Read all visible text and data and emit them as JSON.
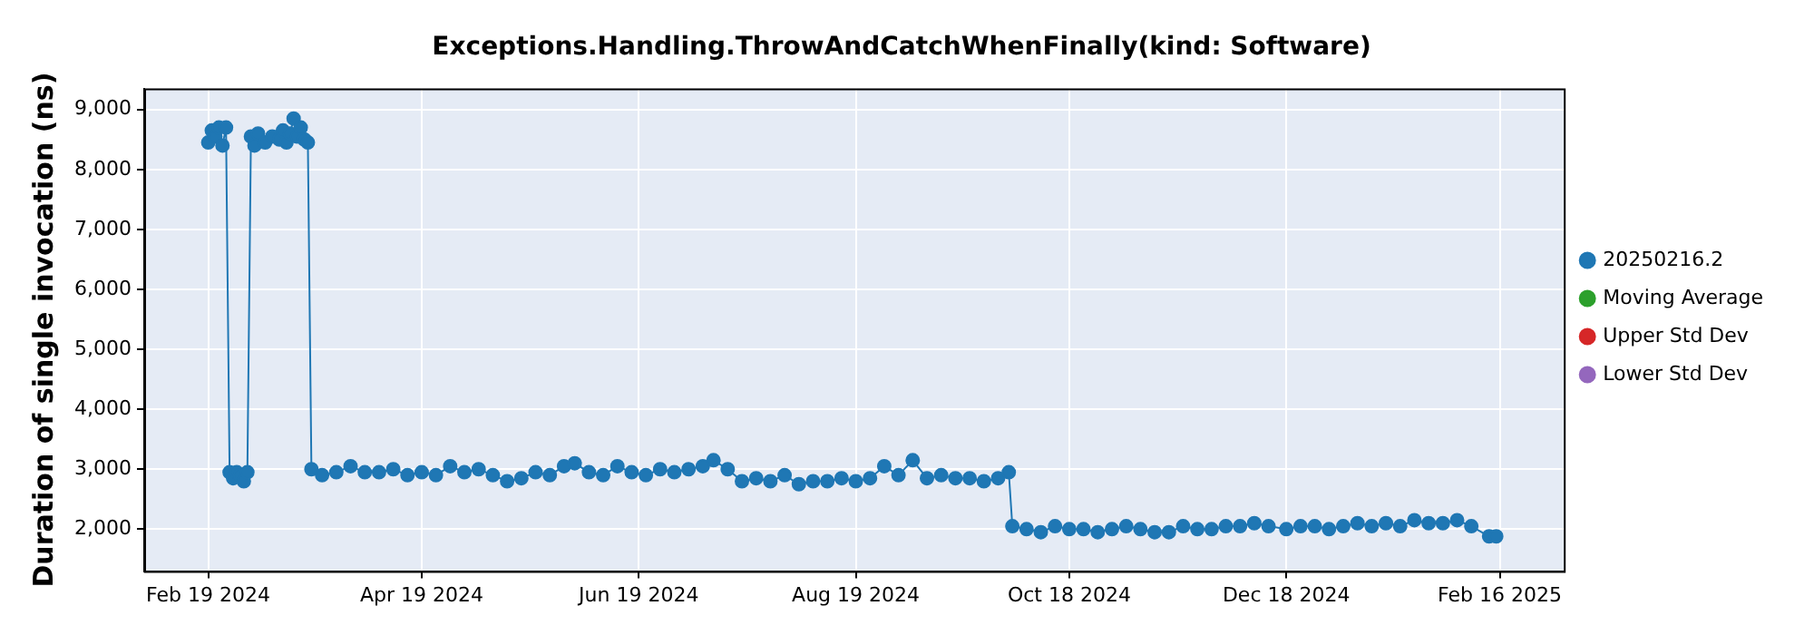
{
  "chart_data": {
    "type": "line",
    "title": "Exceptions.Handling.ThrowAndCatchWhenFinally(kind: Software)",
    "ylabel": "Duration of single invocation (ns)",
    "x": [
      "2024-02-19",
      "2024-02-20",
      "2024-02-21",
      "2024-02-22",
      "2024-02-23",
      "2024-02-24",
      "2024-02-25",
      "2024-02-26",
      "2024-02-27",
      "2024-02-28",
      "2024-02-29",
      "2024-03-01",
      "2024-03-02",
      "2024-03-03",
      "2024-03-04",
      "2024-03-06",
      "2024-03-08",
      "2024-03-10",
      "2024-03-11",
      "2024-03-12",
      "2024-03-13",
      "2024-03-14",
      "2024-03-15",
      "2024-03-16",
      "2024-03-17",
      "2024-03-18",
      "2024-03-19",
      "2024-03-22",
      "2024-03-26",
      "2024-03-30",
      "2024-04-03",
      "2024-04-07",
      "2024-04-11",
      "2024-04-15",
      "2024-04-19",
      "2024-04-23",
      "2024-04-27",
      "2024-05-01",
      "2024-05-05",
      "2024-05-09",
      "2024-05-13",
      "2024-05-17",
      "2024-05-21",
      "2024-05-25",
      "2024-05-29",
      "2024-06-01",
      "2024-06-05",
      "2024-06-09",
      "2024-06-13",
      "2024-06-17",
      "2024-06-21",
      "2024-06-25",
      "2024-06-29",
      "2024-07-03",
      "2024-07-07",
      "2024-07-10",
      "2024-07-14",
      "2024-07-18",
      "2024-07-22",
      "2024-07-26",
      "2024-07-30",
      "2024-08-03",
      "2024-08-07",
      "2024-08-11",
      "2024-08-15",
      "2024-08-19",
      "2024-08-23",
      "2024-08-27",
      "2024-08-31",
      "2024-09-04",
      "2024-09-08",
      "2024-09-12",
      "2024-09-16",
      "2024-09-20",
      "2024-09-24",
      "2024-09-28",
      "2024-10-01",
      "2024-10-02",
      "2024-10-06",
      "2024-10-10",
      "2024-10-14",
      "2024-10-18",
      "2024-10-22",
      "2024-10-26",
      "2024-10-30",
      "2024-11-03",
      "2024-11-07",
      "2024-11-11",
      "2024-11-15",
      "2024-11-19",
      "2024-11-23",
      "2024-11-27",
      "2024-12-01",
      "2024-12-05",
      "2024-12-09",
      "2024-12-13",
      "2024-12-18",
      "2024-12-22",
      "2024-12-26",
      "2024-12-30",
      "2025-01-03",
      "2025-01-07",
      "2025-01-11",
      "2025-01-15",
      "2025-01-19",
      "2025-01-23",
      "2025-01-27",
      "2025-01-31",
      "2025-02-04",
      "2025-02-08",
      "2025-02-13",
      "2025-02-15"
    ],
    "series": [
      {
        "name": "20250216.2",
        "color": "#1f77b4",
        "values": [
          8450,
          8650,
          8550,
          8700,
          8400,
          8700,
          2950,
          2850,
          2950,
          2900,
          2800,
          2950,
          8550,
          8400,
          8600,
          8450,
          8550,
          8500,
          8650,
          8450,
          8600,
          8850,
          8550,
          8700,
          8500,
          8450,
          3000,
          2900,
          2950,
          3050,
          2950,
          2950,
          3000,
          2900,
          2950,
          2900,
          3050,
          2950,
          3000,
          2900,
          2800,
          2850,
          2950,
          2900,
          3050,
          3100,
          2950,
          2900,
          3050,
          2950,
          2900,
          3000,
          2950,
          3000,
          3050,
          3150,
          3000,
          2800,
          2850,
          2800,
          2900,
          2750,
          2800,
          2800,
          2850,
          2800,
          2850,
          3050,
          2900,
          3150,
          2850,
          2900,
          2850,
          2850,
          2800,
          2850,
          2950,
          2050,
          2000,
          1950,
          2050,
          2000,
          2000,
          1950,
          2000,
          2050,
          2000,
          1950,
          1950,
          2050,
          2000,
          2000,
          2050,
          2050,
          2100,
          2050,
          2000,
          2050,
          2050,
          2000,
          2050,
          2100,
          2050,
          2100,
          2050,
          2150,
          2100,
          2100,
          2150,
          2050,
          1880,
          1880
        ]
      },
      {
        "name": "Moving Average",
        "color": "#2ca02c",
        "values": [
          null,
          null,
          null,
          null,
          null,
          null,
          null,
          null,
          null,
          null,
          null,
          null,
          null,
          null,
          null,
          null,
          null,
          null,
          null,
          null,
          null,
          null,
          null,
          null,
          null,
          null,
          null,
          null,
          null,
          null,
          null,
          null,
          null,
          null,
          null,
          null,
          null,
          null,
          null,
          null,
          null,
          null,
          null,
          null,
          null,
          null,
          null,
          null,
          null,
          null,
          null,
          null,
          null,
          null,
          null,
          null,
          null,
          null,
          null,
          null,
          null,
          null,
          null,
          null,
          null,
          null,
          null,
          null,
          null,
          null,
          null,
          null,
          null,
          null,
          null,
          null,
          null,
          null,
          null,
          null,
          null,
          null,
          null,
          null,
          null,
          null,
          null,
          null,
          null,
          null,
          null,
          null,
          null,
          null,
          null,
          null,
          null,
          null,
          null,
          null,
          null,
          null,
          null,
          null,
          null,
          null,
          null,
          null,
          null,
          null,
          null,
          null
        ]
      },
      {
        "name": "Upper Std Dev",
        "color": "#d62728",
        "values": [
          null,
          null,
          null,
          null,
          null,
          null,
          null,
          null,
          null,
          null,
          null,
          null,
          null,
          null,
          null,
          null,
          null,
          null,
          null,
          null,
          null,
          null,
          null,
          null,
          null,
          null,
          null,
          null,
          null,
          null,
          null,
          null,
          null,
          null,
          null,
          null,
          null,
          null,
          null,
          null,
          null,
          null,
          null,
          null,
          null,
          null,
          null,
          null,
          null,
          null,
          null,
          null,
          null,
          null,
          null,
          null,
          null,
          null,
          null,
          null,
          null,
          null,
          null,
          null,
          null,
          null,
          null,
          null,
          null,
          null,
          null,
          null,
          null,
          null,
          null,
          null,
          null,
          null,
          null,
          null,
          null,
          null,
          null,
          null,
          null,
          null,
          null,
          null,
          null,
          null,
          null,
          null,
          null,
          null,
          null,
          null,
          null,
          null,
          null,
          null,
          null,
          null,
          null,
          null,
          null,
          null,
          null,
          null,
          null,
          null,
          null,
          null
        ]
      },
      {
        "name": "Lower Std Dev",
        "color": "#9467bd",
        "values": [
          null,
          null,
          null,
          null,
          null,
          null,
          null,
          null,
          null,
          null,
          null,
          null,
          null,
          null,
          null,
          null,
          null,
          null,
          null,
          null,
          null,
          null,
          null,
          null,
          null,
          null,
          null,
          null,
          null,
          null,
          null,
          null,
          null,
          null,
          null,
          null,
          null,
          null,
          null,
          null,
          null,
          null,
          null,
          null,
          null,
          null,
          null,
          null,
          null,
          null,
          null,
          null,
          null,
          null,
          null,
          null,
          null,
          null,
          null,
          null,
          null,
          null,
          null,
          null,
          null,
          null,
          null,
          null,
          null,
          null,
          null,
          null,
          null,
          null,
          null,
          null,
          null,
          null,
          null,
          null,
          null,
          null,
          null,
          null,
          null,
          null,
          null,
          null,
          null,
          null,
          null,
          null,
          null,
          null,
          null,
          null,
          null,
          null,
          null,
          null,
          null,
          null,
          null,
          null,
          null,
          null,
          null,
          null,
          null,
          null,
          null,
          null
        ]
      }
    ],
    "xlim": [
      "2024-02-01",
      "2025-03-06"
    ],
    "xticks": [
      {
        "value": "2024-02-19",
        "label": "Feb 19 2024"
      },
      {
        "value": "2024-04-19",
        "label": "Apr 19 2024"
      },
      {
        "value": "2024-06-19",
        "label": "Jun 19 2024"
      },
      {
        "value": "2024-08-19",
        "label": "Aug 19 2024"
      },
      {
        "value": "2024-10-18",
        "label": "Oct 18 2024"
      },
      {
        "value": "2024-12-18",
        "label": "Dec 18 2024"
      },
      {
        "value": "2025-02-16",
        "label": "Feb 16 2025"
      }
    ],
    "ylim": [
      1300,
      9350
    ],
    "yticks": [
      {
        "value": 2000,
        "label": "2,000"
      },
      {
        "value": 3000,
        "label": "3,000"
      },
      {
        "value": 4000,
        "label": "4,000"
      },
      {
        "value": 5000,
        "label": "5,000"
      },
      {
        "value": 6000,
        "label": "6,000"
      },
      {
        "value": 7000,
        "label": "7,000"
      },
      {
        "value": 8000,
        "label": "8,000"
      },
      {
        "value": 9000,
        "label": "9,000"
      }
    ],
    "grid": true,
    "legend": "right",
    "marker": "circle",
    "line_style": "solid"
  }
}
